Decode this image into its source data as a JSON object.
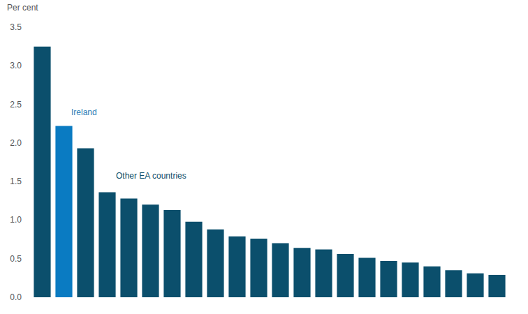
{
  "chart_data": {
    "type": "bar",
    "y_label": "Per cent",
    "categories": [
      null,
      null,
      null,
      null,
      null,
      null,
      null,
      null,
      null,
      null,
      null,
      null,
      null,
      null,
      null,
      null,
      null,
      null,
      null,
      null,
      null,
      null
    ],
    "values": [
      3.25,
      2.22,
      1.93,
      1.36,
      1.28,
      1.2,
      1.13,
      0.98,
      0.88,
      0.79,
      0.76,
      0.7,
      0.64,
      0.62,
      0.56,
      0.51,
      0.47,
      0.45,
      0.4,
      0.35,
      0.31,
      0.29
    ],
    "colors": [
      "#0b4f6c",
      "#0a7bc2",
      "#0b4f6c",
      "#0b4f6c",
      "#0b4f6c",
      "#0b4f6c",
      "#0b4f6c",
      "#0b4f6c",
      "#0b4f6c",
      "#0b4f6c",
      "#0b4f6c",
      "#0b4f6c",
      "#0b4f6c",
      "#0b4f6c",
      "#0b4f6c",
      "#0b4f6c",
      "#0b4f6c",
      "#0b4f6c",
      "#0b4f6c",
      "#0b4f6c",
      "#0b4f6c",
      "#0b4f6c"
    ],
    "annotations": [
      {
        "text": "Ireland",
        "color": "#2a7fba"
      },
      {
        "text": "Other EA countries",
        "color": "#0b4f6c"
      }
    ],
    "ylim": [
      0,
      3.5
    ],
    "yticks": [
      {
        "value": 0,
        "label": "0.0"
      },
      0.5,
      {
        "value": 1,
        "label": "1.0"
      },
      1.5,
      {
        "value": 2,
        "label": "2.0"
      },
      2.5,
      {
        "value": 3,
        "label": "3.0"
      },
      3.5
    ],
    "grid": false,
    "tick_labels": "y"
  }
}
